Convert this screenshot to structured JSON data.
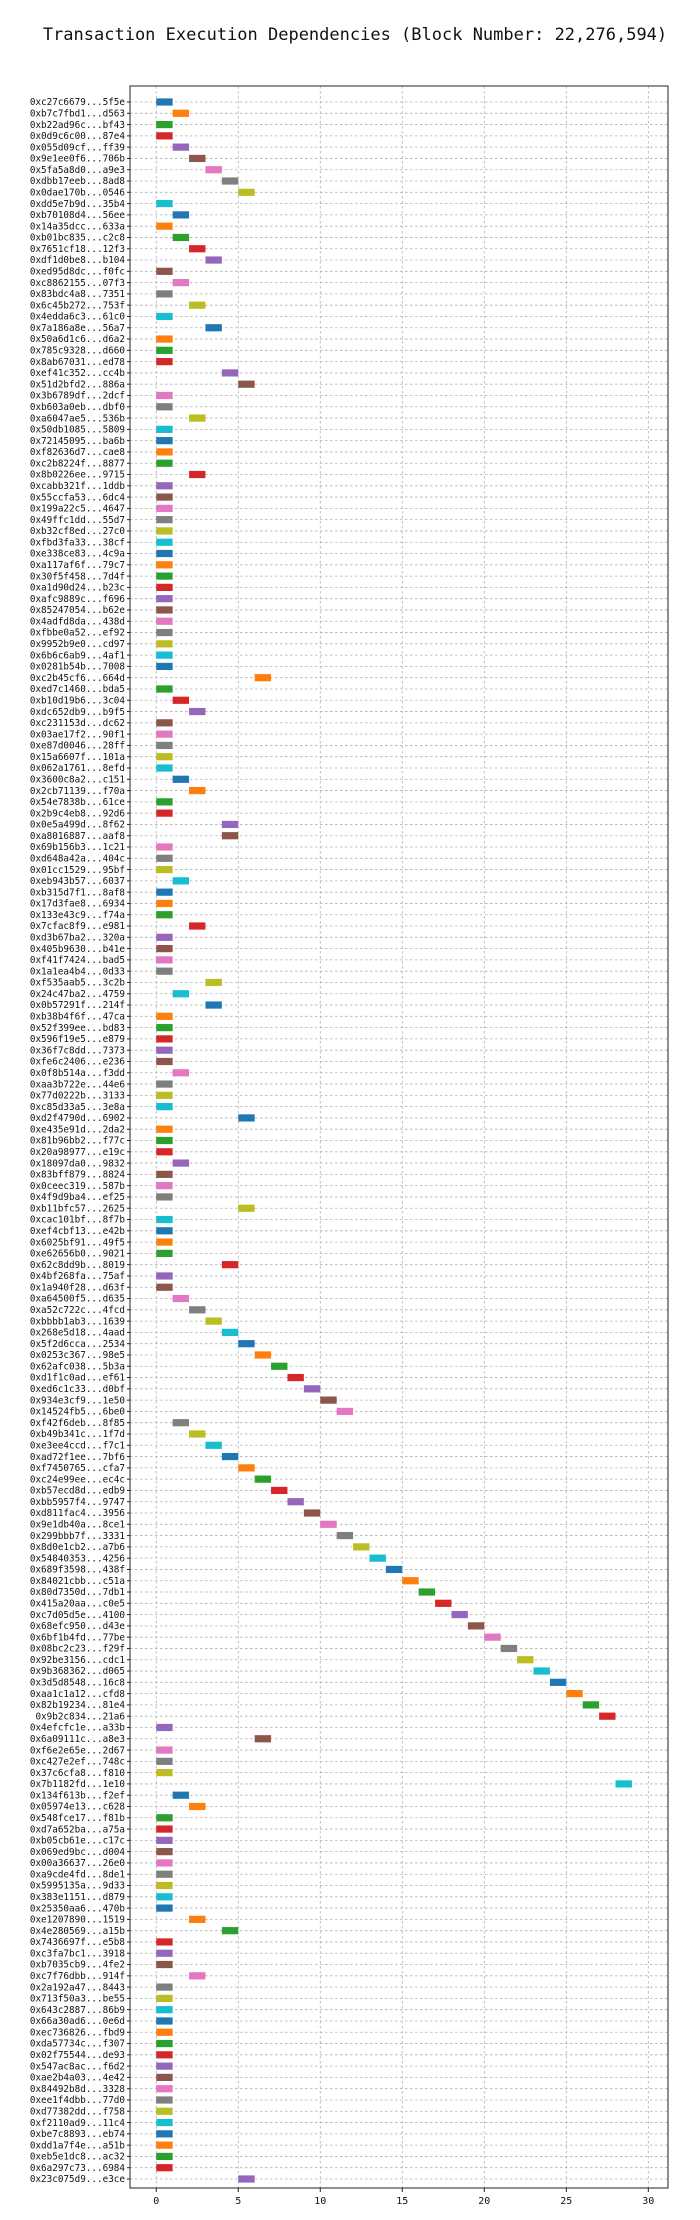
{
  "chart_data": {
    "type": "gantt",
    "title": "Transaction Execution Dependencies (Block Number: 22,276,594)",
    "xlabel": "",
    "ylabel": "",
    "xlim": [
      -1.6,
      31.2
    ],
    "xticks": [
      0,
      5,
      10,
      15,
      20,
      25,
      30
    ],
    "grid": true,
    "palette": [
      "#1f77b4",
      "#ff7f0e",
      "#2ca02c",
      "#d62728",
      "#9467bd",
      "#8c564b",
      "#e377c2",
      "#7f7f7f",
      "#bcbd22",
      "#17becf"
    ],
    "transactions": [
      {
        "label": "0xc27c6679...5f5e",
        "start": 0
      },
      {
        "label": "0xb7c7fbd1...d563",
        "start": 1
      },
      {
        "label": "0xb22ad96c...bf43",
        "start": 0
      },
      {
        "label": "0x0d9c6c00...87e4",
        "start": 0
      },
      {
        "label": "0x055d09cf...ff39",
        "start": 1
      },
      {
        "label": "0x9e1ee0f6...706b",
        "start": 2
      },
      {
        "label": "0x5fa5a8d0...a9e3",
        "start": 3
      },
      {
        "label": "0xdbb17eeb...8ad8",
        "start": 4
      },
      {
        "label": "0x0dae170b...0546",
        "start": 5
      },
      {
        "label": "0xdd5e7b9d...35b4",
        "start": 0
      },
      {
        "label": "0xb70108d4...56ee",
        "start": 1
      },
      {
        "label": "0x14a35dcc...633a",
        "start": 0
      },
      {
        "label": "0xb01bc835...c2c8",
        "start": 1
      },
      {
        "label": "0x7651cf18...12f3",
        "start": 2
      },
      {
        "label": "0xdf1d0be8...b104",
        "start": 3
      },
      {
        "label": "0xed95d8dc...f0fc",
        "start": 0
      },
      {
        "label": "0xc8862155...07f3",
        "start": 1
      },
      {
        "label": "0x83bdc4a8...7351",
        "start": 0
      },
      {
        "label": "0x6c45b272...753f",
        "start": 2
      },
      {
        "label": "0x4edda6c3...61c0",
        "start": 0
      },
      {
        "label": "0x7a186a8e...56a7",
        "start": 3
      },
      {
        "label": "0x50a6d1c6...d6a2",
        "start": 0
      },
      {
        "label": "0x785c9328...d660",
        "start": 0
      },
      {
        "label": "0x8ab67031...ed78",
        "start": 0
      },
      {
        "label": "0xef41c352...cc4b",
        "start": 4
      },
      {
        "label": "0x51d2bfd2...886a",
        "start": 5
      },
      {
        "label": "0x3b6789df...2dcf",
        "start": 0
      },
      {
        "label": "0xb603a0eb...dbf0",
        "start": 0
      },
      {
        "label": "0xa6047ae5...536b",
        "start": 2
      },
      {
        "label": "0x50db1085...5809",
        "start": 0
      },
      {
        "label": "0x72145095...ba6b",
        "start": 0
      },
      {
        "label": "0xf82636d7...cae8",
        "start": 0
      },
      {
        "label": "0xc2b8224f...8877",
        "start": 0
      },
      {
        "label": "0x8b0226ee...9715",
        "start": 2
      },
      {
        "label": "0xcabb321f...1ddb",
        "start": 0
      },
      {
        "label": "0x55ccfa53...6dc4",
        "start": 0
      },
      {
        "label": "0x199a22c5...4647",
        "start": 0
      },
      {
        "label": "0x49ffc1dd...55d7",
        "start": 0
      },
      {
        "label": "0xb32cf8ed...27c0",
        "start": 0
      },
      {
        "label": "0xfbd3fa33...38cf",
        "start": 0
      },
      {
        "label": "0xe338ce83...4c9a",
        "start": 0
      },
      {
        "label": "0xa117af6f...79c7",
        "start": 0
      },
      {
        "label": "0x30f5f458...7d4f",
        "start": 0
      },
      {
        "label": "0xa1d90d24...b23c",
        "start": 0
      },
      {
        "label": "0xafc9889c...f696",
        "start": 0
      },
      {
        "label": "0x85247054...b62e",
        "start": 0
      },
      {
        "label": "0x4adfd8da...438d",
        "start": 0
      },
      {
        "label": "0xfbbe0a52...ef92",
        "start": 0
      },
      {
        "label": "0x9952b9e0...cd97",
        "start": 0
      },
      {
        "label": "0x6b6c6ab9...4af1",
        "start": 0
      },
      {
        "label": "0x0281b54b...7008",
        "start": 0
      },
      {
        "label": "0xc2b45cf6...664d",
        "start": 6
      },
      {
        "label": "0xed7c1460...bda5",
        "start": 0
      },
      {
        "label": "0xb10d19b6...3c04",
        "start": 1
      },
      {
        "label": "0xdc652db9...b9f5",
        "start": 2
      },
      {
        "label": "0xc231153d...dc62",
        "start": 0
      },
      {
        "label": "0x03ae17f2...90f1",
        "start": 0
      },
      {
        "label": "0xe87d0046...28ff",
        "start": 0
      },
      {
        "label": "0x15a6607f...101a",
        "start": 0
      },
      {
        "label": "0x062a1761...8efd",
        "start": 0
      },
      {
        "label": "0x3600c8a2...c151",
        "start": 1
      },
      {
        "label": "0x2cb71139...f70a",
        "start": 2
      },
      {
        "label": "0x54e7838b...61ce",
        "start": 0
      },
      {
        "label": "0x2b9c4eb8...92d6",
        "start": 0
      },
      {
        "label": "0x0e5a499d...8f62",
        "start": 4
      },
      {
        "label": "0xa8016887...aaf8",
        "start": 4
      },
      {
        "label": "0x69b156b3...1c21",
        "start": 0
      },
      {
        "label": "0xd648a42a...404c",
        "start": 0
      },
      {
        "label": "0x01cc1529...95bf",
        "start": 0
      },
      {
        "label": "0xeb943b57...6037",
        "start": 1
      },
      {
        "label": "0xb315d7f1...8af8",
        "start": 0
      },
      {
        "label": "0x17d3fae8...6934",
        "start": 0
      },
      {
        "label": "0x133e43c9...f74a",
        "start": 0
      },
      {
        "label": "0x7cfac8f9...e981",
        "start": 2
      },
      {
        "label": "0xd3b67ba2...320a",
        "start": 0
      },
      {
        "label": "0x405b9630...b41e",
        "start": 0
      },
      {
        "label": "0xf41f7424...bad5",
        "start": 0
      },
      {
        "label": "0x1a1ea4b4...0d33",
        "start": 0
      },
      {
        "label": "0xf535aab5...3c2b",
        "start": 3
      },
      {
        "label": "0x24c47ba2...4759",
        "start": 1
      },
      {
        "label": "0x0b57291f...214f",
        "start": 3
      },
      {
        "label": "0xb38b4f6f...47ca",
        "start": 0
      },
      {
        "label": "0x52f399ee...bd83",
        "start": 0
      },
      {
        "label": "0x596f19e5...e879",
        "start": 0
      },
      {
        "label": "0x36f7c8dd...7373",
        "start": 0
      },
      {
        "label": "0xfe6c2406...e236",
        "start": 0
      },
      {
        "label": "0x0f8b514a...f3dd",
        "start": 1
      },
      {
        "label": "0xaa3b722e...44e6",
        "start": 0
      },
      {
        "label": "0x77d0222b...3133",
        "start": 0
      },
      {
        "label": "0xc85d33a5...3e8a",
        "start": 0
      },
      {
        "label": "0xd2f4790d...6902",
        "start": 5
      },
      {
        "label": "0xe435e91d...2da2",
        "start": 0
      },
      {
        "label": "0x81b96bb2...f77c",
        "start": 0
      },
      {
        "label": "0x20a98977...e19c",
        "start": 0
      },
      {
        "label": "0x18097da0...9832",
        "start": 1
      },
      {
        "label": "0x83bff879...8824",
        "start": 0
      },
      {
        "label": "0x0ceec319...587b",
        "start": 0
      },
      {
        "label": "0x4f9d9ba4...ef25",
        "start": 0
      },
      {
        "label": "0xb11bfc57...2625",
        "start": 5
      },
      {
        "label": "0xcac101bf...8f7b",
        "start": 0
      },
      {
        "label": "0xef4cbf13...e42b",
        "start": 0
      },
      {
        "label": "0x6025bf91...49f5",
        "start": 0
      },
      {
        "label": "0xe62656b0...9021",
        "start": 0
      },
      {
        "label": "0x62c8dd9b...8019",
        "start": 4
      },
      {
        "label": "0x4bf268fa...75af",
        "start": 0
      },
      {
        "label": "0x1a940f28...d63f",
        "start": 0
      },
      {
        "label": "0xa64500f5...d635",
        "start": 1
      },
      {
        "label": "0xa52c722c...4fcd",
        "start": 2
      },
      {
        "label": "0xbbbb1ab3...1639",
        "start": 3
      },
      {
        "label": "0x268e5d18...4aad",
        "start": 4
      },
      {
        "label": "0x5f2d6cca...2534",
        "start": 5
      },
      {
        "label": "0x0253c367...98e5",
        "start": 6
      },
      {
        "label": "0x62afc038...5b3a",
        "start": 7
      },
      {
        "label": "0xd1f1c0ad...ef61",
        "start": 8
      },
      {
        "label": "0xed6c1c33...d0bf",
        "start": 9
      },
      {
        "label": "0x934e3cf9...1e50",
        "start": 10
      },
      {
        "label": "0x14524fb5...6be0",
        "start": 11
      },
      {
        "label": "0xf42f6deb...8f85",
        "start": 1
      },
      {
        "label": "0xb49b341c...1f7d",
        "start": 2
      },
      {
        "label": "0xe3ee4ccd...f7c1",
        "start": 3
      },
      {
        "label": "0xad72f1ee...7bf6",
        "start": 4
      },
      {
        "label": "0xf7450765...cfa7",
        "start": 5
      },
      {
        "label": "0xc24e99ee...ec4c",
        "start": 6
      },
      {
        "label": "0xb57ecd8d...edb9",
        "start": 7
      },
      {
        "label": "0xbb5957f4...9747",
        "start": 8
      },
      {
        "label": "0xd811fac4...3956",
        "start": 9
      },
      {
        "label": "0x9e1db40a...8ce1",
        "start": 10
      },
      {
        "label": "0x299bbb7f...3331",
        "start": 11
      },
      {
        "label": "0x8d0e1cb2...a7b6",
        "start": 12
      },
      {
        "label": "0x54840353...4256",
        "start": 13
      },
      {
        "label": "0x689f3598...438f",
        "start": 14
      },
      {
        "label": "0x84021cbb...c51a",
        "start": 15
      },
      {
        "label": "0x80d7350d...7db1",
        "start": 16
      },
      {
        "label": "0x415a20aa...c0e5",
        "start": 17
      },
      {
        "label": "0xc7d05d5e...4100",
        "start": 18
      },
      {
        "label": "0x68efc950...d43e",
        "start": 19
      },
      {
        "label": "0x6bf1b4fd...77be",
        "start": 20
      },
      {
        "label": "0x08bc2c23...f29f",
        "start": 21
      },
      {
        "label": "0x92be3156...cdc1",
        "start": 22
      },
      {
        "label": "0x9b368362...d065",
        "start": 23
      },
      {
        "label": "0x3d5d8548...16c8",
        "start": 24
      },
      {
        "label": "0xaa1c1a12...cfd8",
        "start": 25
      },
      {
        "label": "0x82b19234...81e4",
        "start": 26
      },
      {
        "label": "0x9b2c834...21a6",
        "start": 27
      },
      {
        "label": "0x4efcfc1e...a33b",
        "start": 0
      },
      {
        "label": "0x6a09111c...a8e3",
        "start": 6
      },
      {
        "label": "0xf6e2e65e...2d67",
        "start": 0
      },
      {
        "label": "0xc427e2ef...748c",
        "start": 0
      },
      {
        "label": "0x37c6cfa8...f810",
        "start": 0
      },
      {
        "label": "0x7b1182fd...1e10",
        "start": 28
      },
      {
        "label": "0x134f613b...f2ef",
        "start": 1
      },
      {
        "label": "0x05974e13...c628",
        "start": 2
      },
      {
        "label": "0x548fce17...f81b",
        "start": 0
      },
      {
        "label": "0xd7a652ba...a75a",
        "start": 0
      },
      {
        "label": "0xb05cb61e...c17c",
        "start": 0
      },
      {
        "label": "0x069ed9bc...d004",
        "start": 0
      },
      {
        "label": "0x00a36637...26e0",
        "start": 0
      },
      {
        "label": "0xa9cde4fd...8de1",
        "start": 0
      },
      {
        "label": "0x5995135a...9d33",
        "start": 0
      },
      {
        "label": "0x383e1151...d879",
        "start": 0
      },
      {
        "label": "0x25350aa6...470b",
        "start": 0
      },
      {
        "label": "0xe1207890...1519",
        "start": 2
      },
      {
        "label": "0x4e280569...a15b",
        "start": 4
      },
      {
        "label": "0x7436697f...e5b8",
        "start": 0
      },
      {
        "label": "0xc3fa7bc1...3918",
        "start": 0
      },
      {
        "label": "0xb7035cb9...4fe2",
        "start": 0
      },
      {
        "label": "0xc7f76dbb...914f",
        "start": 2
      },
      {
        "label": "0x2a192a47...8443",
        "start": 0
      },
      {
        "label": "0x713f50a3...be55",
        "start": 0
      },
      {
        "label": "0x643c2887...86b9",
        "start": 0
      },
      {
        "label": "0x66a30ad6...0e6d",
        "start": 0
      },
      {
        "label": "0xec736826...fbd9",
        "start": 0
      },
      {
        "label": "0xda57734c...f307",
        "start": 0
      },
      {
        "label": "0x02f75544...de93",
        "start": 0
      },
      {
        "label": "0x547ac8ac...f6d2",
        "start": 0
      },
      {
        "label": "0xae2b4a03...4e42",
        "start": 0
      },
      {
        "label": "0x84492b8d...3328",
        "start": 0
      },
      {
        "label": "0xee1f4dbb...77d0",
        "start": 0
      },
      {
        "label": "0xd77382dd...f758",
        "start": 0
      },
      {
        "label": "0xf2110ad9...11c4",
        "start": 0
      },
      {
        "label": "0xbe7c8893...eb74",
        "start": 0
      },
      {
        "label": "0xdd1a7f4e...a51b",
        "start": 0
      },
      {
        "label": "0xeb5e1dc8...ac32",
        "start": 0
      },
      {
        "label": "0x6a297c73...6984",
        "start": 0
      },
      {
        "label": "0x23c075d9...e3ce",
        "start": 5
      }
    ]
  }
}
